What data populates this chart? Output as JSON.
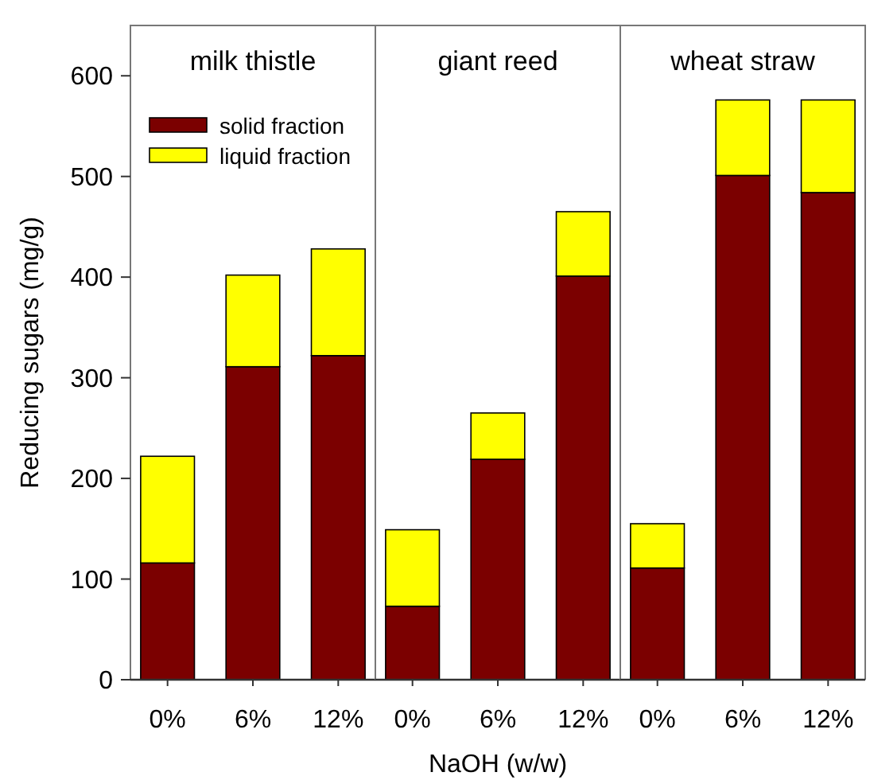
{
  "chart_data": [
    {
      "type": "bar",
      "title": "milk thistle",
      "ylabel": "Reducing sugars (mg/g)",
      "categories": [
        "0%",
        "6%",
        "12%"
      ],
      "stacked": true,
      "legend": "top left",
      "ylim": [
        0,
        650
      ],
      "yticks": [
        0,
        100,
        200,
        300,
        400,
        500,
        600
      ],
      "series": [
        {
          "name": "solid fraction",
          "color": "#7b0000",
          "values": [
            116,
            311,
            322
          ]
        },
        {
          "name": "liquid fraction",
          "color": "#ffff00",
          "values": [
            106,
            91,
            106
          ]
        }
      ]
    },
    {
      "type": "bar",
      "title": "giant reed",
      "xlabel": "NaOH (w/w)",
      "categories": [
        "0%",
        "6%",
        "12%"
      ],
      "stacked": true,
      "ylim": [
        0,
        650
      ],
      "tick_labels": "x",
      "series": [
        {
          "color": "#7b0000",
          "values": [
            73,
            219,
            401
          ]
        },
        {
          "color": "#ffff00",
          "values": [
            76,
            46,
            64
          ]
        }
      ]
    },
    {
      "type": "bar",
      "title": "wheat straw",
      "categories": [
        "0%",
        "6%",
        "12%"
      ],
      "stacked": true,
      "ylim": [
        0,
        650
      ],
      "tick_labels": "x",
      "series": [
        {
          "color": "#7b0000",
          "values": [
            111,
            501,
            484
          ]
        },
        {
          "color": "#ffff00",
          "values": [
            44,
            75,
            92
          ]
        }
      ]
    }
  ]
}
